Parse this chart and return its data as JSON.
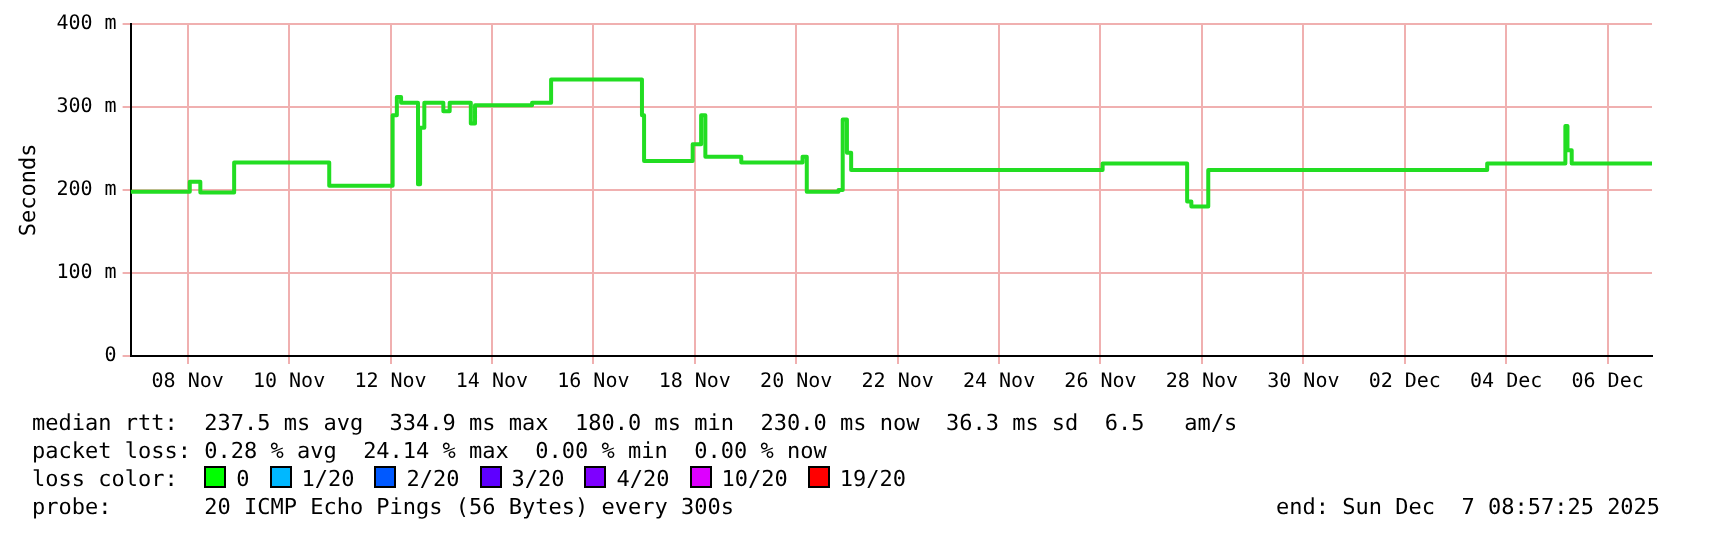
{
  "chart_data": {
    "type": "step",
    "ylabel": "Seconds",
    "grid": true,
    "legend": false,
    "marker": "none",
    "xlim": [
      "2025-11-07T09:00",
      "2025-12-07T09:00"
    ],
    "xticks": [
      {
        "value": "2025-11-08T12:00",
        "label": "08 Nov"
      },
      {
        "value": "2025-11-10T12:00",
        "label": "10 Nov"
      },
      {
        "value": "2025-11-12T12:00",
        "label": "12 Nov"
      },
      {
        "value": "2025-11-14T12:00",
        "label": "14 Nov"
      },
      {
        "value": "2025-11-16T12:00",
        "label": "16 Nov"
      },
      {
        "value": "2025-11-18T12:00",
        "label": "18 Nov"
      },
      {
        "value": "2025-11-20T12:00",
        "label": "20 Nov"
      },
      {
        "value": "2025-11-22T12:00",
        "label": "22 Nov"
      },
      {
        "value": "2025-11-24T12:00",
        "label": "24 Nov"
      },
      {
        "value": "2025-11-26T12:00",
        "label": "26 Nov"
      },
      {
        "value": "2025-11-28T12:00",
        "label": "28 Nov"
      },
      {
        "value": "2025-11-30T12:00",
        "label": "30 Nov"
      },
      {
        "value": "2025-12-02T12:00",
        "label": "02 Dec"
      },
      {
        "value": "2025-12-04T12:00",
        "label": "04 Dec"
      },
      {
        "value": "2025-12-06T12:00",
        "label": "06 Dec"
      }
    ],
    "ylim": [
      0,
      400
    ],
    "yticks": [
      0,
      {
        "value": 100,
        "label": "100 m"
      },
      {
        "value": 200,
        "label": "200 m"
      },
      {
        "value": 300,
        "label": "300 m"
      },
      {
        "value": 400,
        "label": "400 m"
      }
    ],
    "x": [
      "2025-11-07T09:00",
      "2025-11-08T13:00",
      "2025-11-08T18:00",
      "2025-11-09T10:00",
      "2025-11-11T07:00",
      "2025-11-12T13:00",
      "2025-11-12T15:00",
      "2025-11-12T17:00",
      "2025-11-13T01:00",
      "2025-11-13T02:00",
      "2025-11-13T04:00",
      "2025-11-13T13:00",
      "2025-11-13T16:00",
      "2025-11-14T02:00",
      "2025-11-14T04:00",
      "2025-11-15T07:00",
      "2025-11-15T16:00",
      "2025-11-17T11:00",
      "2025-11-17T12:00",
      "2025-11-18T11:00",
      "2025-11-18T15:00",
      "2025-11-18T17:00",
      "2025-11-19T10:00",
      "2025-11-20T15:00",
      "2025-11-20T17:00",
      "2025-11-21T08:00",
      "2025-11-21T10:00",
      "2025-11-21T12:00",
      "2025-11-21T14:00",
      "2025-11-26T13:00",
      "2025-11-28T05:00",
      "2025-11-28T07:00",
      "2025-11-28T15:00",
      "2025-12-04T03:00",
      "2025-12-05T16:00",
      "2025-12-05T17:00",
      "2025-12-05T19:00",
      "2025-12-07T09:00"
    ],
    "series": [
      {
        "color": "#22dd22",
        "values": [
          198,
          210,
          197,
          233,
          205,
          290,
          312,
          305,
          207,
          275,
          305,
          295,
          305,
          280,
          302,
          305,
          333,
          290,
          235,
          255,
          290,
          240,
          233,
          240,
          198,
          200,
          285,
          245,
          224,
          232,
          186,
          180,
          224,
          232,
          277,
          248,
          232,
          232
        ]
      }
    ],
    "annotations": [
      "median rtt:  237.5 ms avg  334.9 ms max  180.0 ms min  230.0 ms now  36.3 ms sd  6.5   am/s",
      "packet loss: 0.28 % avg  24.14 % max  0.00 % min  0.00 % now",
      "loss color:",
      "0",
      "1/20",
      "2/20",
      "3/20",
      "4/20",
      "10/20",
      "19/20",
      "probe:       20 ICMP Echo Pings (56 Bytes) every 300s",
      "end: Sun Dec  7 08:57:25 2025"
    ]
  }
}
